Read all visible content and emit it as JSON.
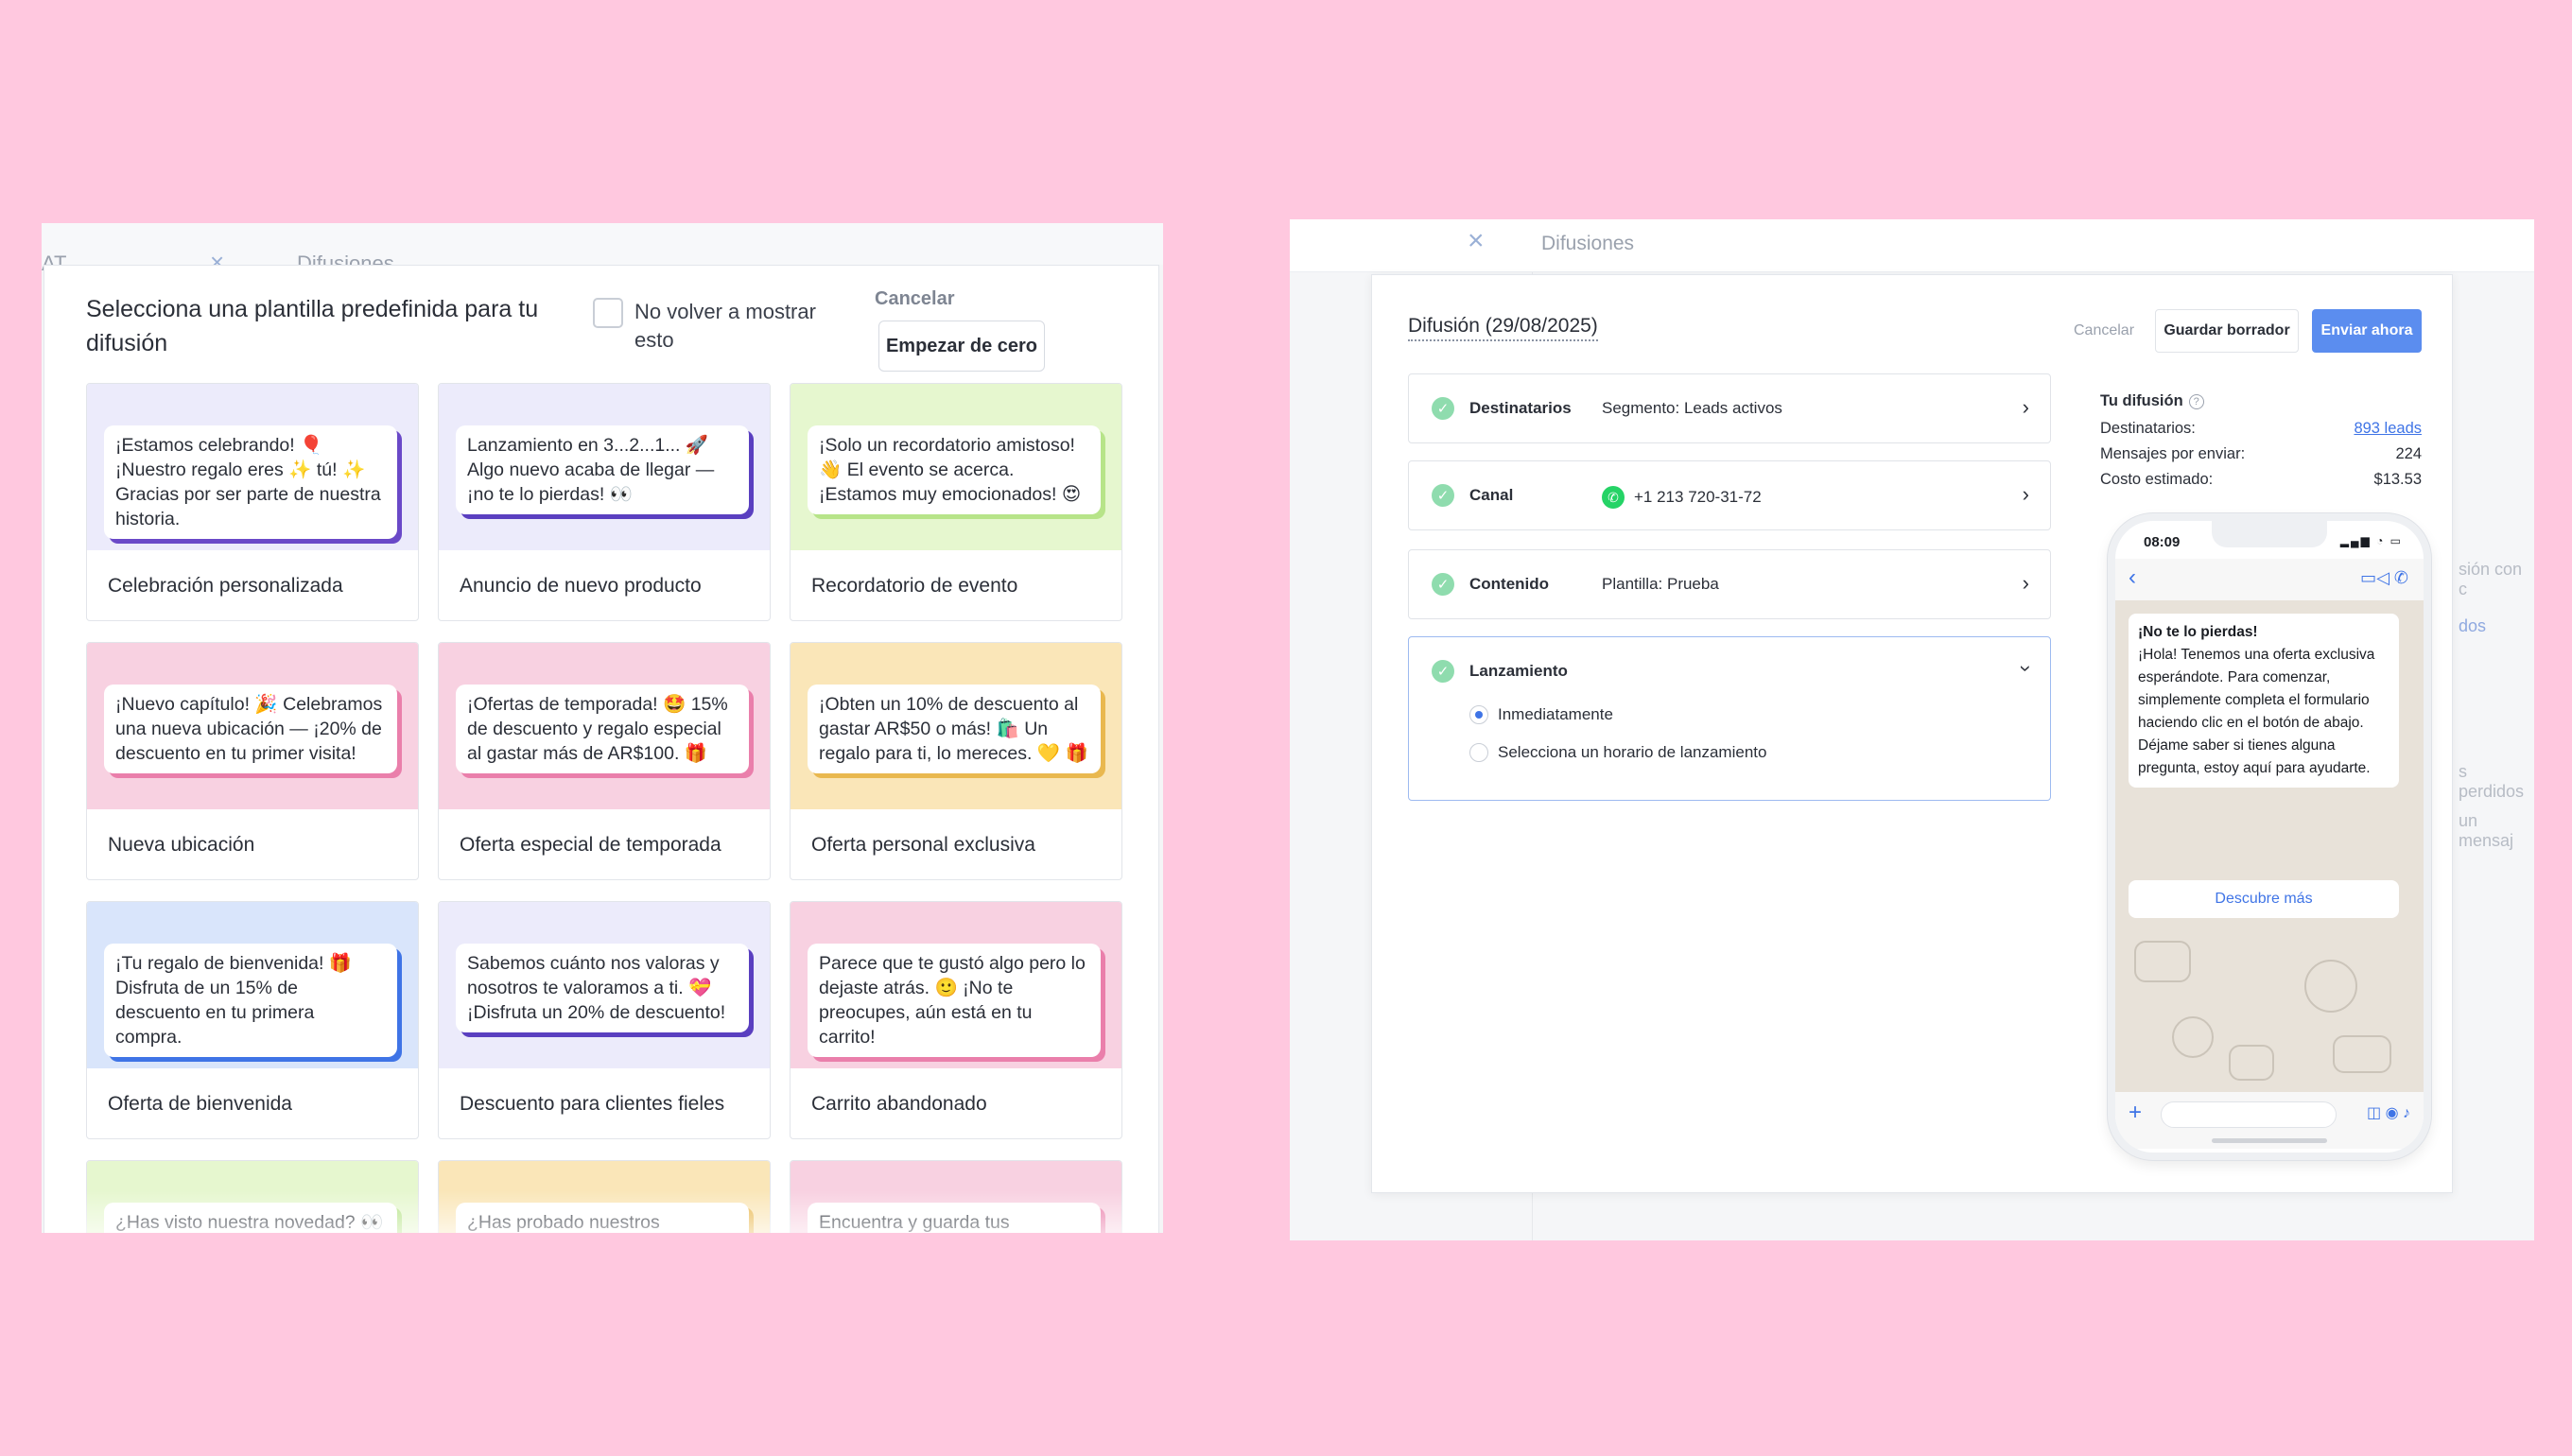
{
  "left": {
    "bg_tab_text": "AT",
    "bg_tab_close": "×",
    "bg_tab2_text": "Difusiones",
    "title": "Selecciona una plantilla predefinida para tu difusión",
    "dont_show_label": "No volver a mostrar esto",
    "cancel_label": "Cancelar",
    "start_label": "Empezar de cero",
    "templates": [
      {
        "message": "¡Estamos celebrando! 🎈 ¡Nuestro regalo eres ✨ tú! ✨ Gracias por ser parte de nuestra historia.",
        "label": "Celebración personalizada",
        "bg": "#ecebfb",
        "accent": "#6a49c8"
      },
      {
        "message": "Lanzamiento en 3...2...1... 🚀 Algo nuevo acaba de llegar — ¡no te lo pierdas! 👀",
        "label": "Anuncio de nuevo producto",
        "bg": "#ecebfb",
        "accent": "#5a3fc0"
      },
      {
        "message": "¡Solo un recordatorio amistoso! 👋 El evento se acerca. ¡Estamos muy emocionados! 😍",
        "label": "Recordatorio de evento",
        "bg": "#e6f7cf",
        "accent": "#b7e489"
      },
      {
        "message": "¡Nuevo capítulo! 🎉 Celebramos una nueva ubicación — ¡20% de descuento en tu primer visita!",
        "label": "Nueva ubicación",
        "bg": "#f8d1e1",
        "accent": "#ea7fab"
      },
      {
        "message": "¡Ofertas de temporada! 🤩 15% de descuento y regalo especial al gastar más de AR$100. 🎁",
        "label": "Oferta especial de temporada",
        "bg": "#f8d1e1",
        "accent": "#ea7fab"
      },
      {
        "message": "¡Obten un 10% de descuento al gastar AR$50 o más! 🛍️ Un regalo para ti, lo mereces. 💛 🎁",
        "label": "Oferta personal exclusiva",
        "bg": "#fae6b8",
        "accent": "#e9b84f"
      },
      {
        "message": "¡Tu regalo de bienvenida! 🎁 Disfruta de un 15% de descuento en tu primera compra.",
        "label": "Oferta de bienvenida",
        "bg": "#d9e5fb",
        "accent": "#3f74e6"
      },
      {
        "message": "Sabemos cuánto nos valoras y nosotros te valoramos a ti. 💝 ¡Disfruta un 20% de descuento!",
        "label": "Descuento para clientes fieles",
        "bg": "#ecebfb",
        "accent": "#5a3fc0"
      },
      {
        "message": "Parece que te gustó algo pero lo dejaste atrás. 🙂 ¡No te preocupes, aún está en tu carrito!",
        "label": "Carrito abandonado",
        "bg": "#f8d1e1",
        "accent": "#ea7fab"
      },
      {
        "message": "¿Has visto nuestra novedad? 👀",
        "label": "",
        "bg": "#e6f7cf",
        "accent": "#b7e489"
      },
      {
        "message": "¿Has probado nuestros servicios?",
        "label": "",
        "bg": "#fae6b8",
        "accent": "#e9b84f"
      },
      {
        "message": "Encuentra y guarda tus favoritos,",
        "label": "",
        "bg": "#f8d1e1",
        "accent": "#ea7fab"
      }
    ]
  },
  "right": {
    "close_icon": "×",
    "page_title": "Difusiones",
    "bg_texts": [
      "sión con c",
      "dos",
      "s perdidos",
      "un mensaj"
    ],
    "modal_title": "Difusión (29/08/2025)",
    "cancel_label": "Cancelar",
    "draft_label": "Guardar borrador",
    "send_label": "Enviar ahora",
    "steps": [
      {
        "label": "Destinatarios",
        "value": "Segmento: Leads activos"
      },
      {
        "label": "Canal",
        "value": "+1 213 720-31-72"
      },
      {
        "label": "Contenido",
        "value": "Plantilla: Prueba"
      },
      {
        "label": "Lanzamiento",
        "value": ""
      }
    ],
    "launch_options": [
      "Inmediatamente",
      "Selecciona un horario de lanzamiento"
    ],
    "launch_selected": 0,
    "summary": {
      "title": "Tu difusión",
      "recipients_label": "Destinatarios:",
      "recipients_value": "893 leads",
      "messages_label": "Mensajes por enviar:",
      "messages_value": "224",
      "cost_label": "Costo estimado:",
      "cost_value": "$13.53"
    },
    "phone": {
      "time": "08:09",
      "msg_title": "¡No te lo pierdas!",
      "msg_body": "¡Hola! Tenemos una oferta exclusiva esperándote. Para comenzar, simplemente completa el formulario haciendo clic en el botón de abajo.\nDéjame saber si tienes alguna pregunta, estoy aquí para ayudarte.",
      "cta": "Descubre más"
    },
    "colors": {
      "primary": "#5b8def",
      "check": "#8fdcae",
      "whatsapp": "#25d366"
    }
  }
}
